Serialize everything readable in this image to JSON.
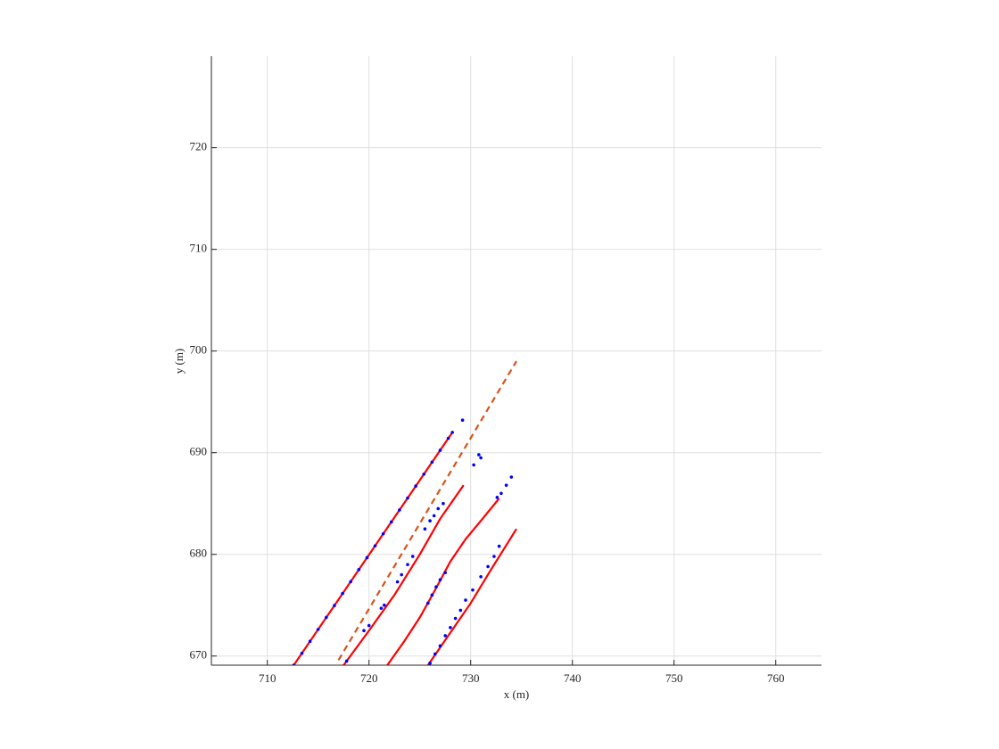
{
  "chart_data": {
    "type": "line",
    "xlabel": "x (m)",
    "ylabel": "y (m)",
    "xlim": [
      704.5,
      764.5
    ],
    "ylim": [
      669.1,
      729
    ],
    "xticks": [
      710,
      720,
      730,
      740,
      750,
      760
    ],
    "yticks": [
      670,
      680,
      690,
      700,
      710,
      720
    ],
    "grid": true,
    "series": [
      {
        "color": "#ff0000",
        "style": "solid",
        "x": [
          712.6,
          728.2
        ],
        "values": [
          669.1,
          692
        ]
      },
      {
        "color": "#ff0000",
        "style": "solid",
        "x": [
          717.5,
          720,
          722.5,
          725,
          727,
          729.3
        ],
        "values": [
          669.1,
          672.5,
          676,
          680,
          683.5,
          686.8
        ]
      },
      {
        "color": "#ff0000",
        "style": "solid",
        "x": [
          721.8,
          723.5,
          725,
          726.5,
          728,
          729.5,
          731,
          732.8
        ],
        "values": [
          669.1,
          671.5,
          673.8,
          676.5,
          679.3,
          681.5,
          683.3,
          685.5
        ]
      },
      {
        "color": "#ff0000",
        "style": "solid",
        "x": [
          725.8,
          728,
          730,
          732,
          734.5
        ],
        "values": [
          669.1,
          672.3,
          675.2,
          678.5,
          682.5
        ]
      },
      {
        "color": "#d95319",
        "style": "dashed",
        "x": [
          717,
          734.5
        ],
        "values": [
          669.6,
          699
        ]
      },
      {
        "color": "#0000ff",
        "style": "points",
        "x": [
          712.6,
          713.4,
          714.2,
          715.0,
          715.8,
          716.6,
          717.4,
          718.2,
          719.0,
          719.8,
          720.6,
          721.4,
          722.2,
          723.0,
          723.8,
          724.6,
          725.4,
          726.2,
          727.0,
          727.8,
          728.2,
          729.2
        ],
        "values": [
          669.1,
          670.27,
          671.45,
          672.62,
          673.8,
          674.97,
          676.15,
          677.32,
          678.5,
          679.67,
          680.84,
          682.02,
          683.19,
          684.37,
          685.54,
          686.72,
          687.89,
          689.07,
          690.24,
          691.42,
          692.0,
          693.2
        ]
      },
      {
        "color": "#0000ff",
        "style": "points",
        "x": [
          717.8,
          719.5,
          720,
          721.2,
          721.5,
          722.8,
          723.2,
          723.8,
          724.3,
          725.5,
          726,
          726.4,
          726.8,
          727.3,
          730.3,
          730.8,
          731
        ],
        "values": [
          669.5,
          672.5,
          673,
          674.7,
          675,
          677.3,
          678,
          679,
          679.8,
          682.5,
          683.3,
          683.8,
          684.5,
          685,
          688.8,
          689.8,
          689.5
        ]
      },
      {
        "color": "#0000ff",
        "style": "points",
        "x": [
          725.8,
          726.2,
          726.6,
          727,
          727.5,
          732.6,
          733,
          733.5,
          734
        ],
        "values": [
          675.2,
          676,
          676.8,
          677.5,
          678.2,
          685.6,
          686,
          686.8,
          687.6
        ]
      },
      {
        "color": "#0000ff",
        "style": "points",
        "x": [
          726,
          726.5,
          727,
          727.5,
          728,
          728.5,
          729,
          729.5,
          730.2,
          731,
          731.7,
          732.3,
          732.8
        ],
        "values": [
          669.3,
          670.2,
          671,
          672,
          672.8,
          673.7,
          674.5,
          675.5,
          676.5,
          677.8,
          678.8,
          679.8,
          680.8
        ]
      }
    ]
  }
}
